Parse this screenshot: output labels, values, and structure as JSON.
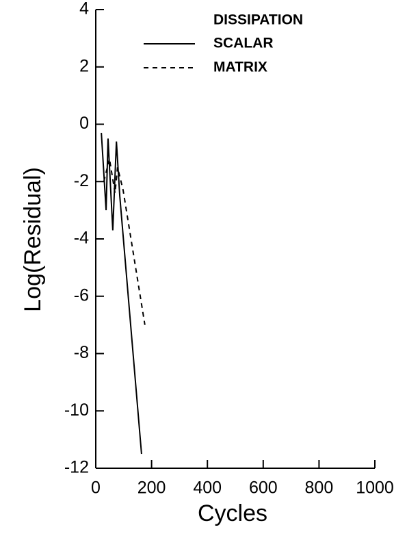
{
  "chart_data": {
    "type": "line",
    "x_label": "Cycles",
    "y_label": "Log(Residual)",
    "legend_title": "DISSIPATION",
    "series": [
      {
        "name": "SCALAR",
        "color": "#000000",
        "dash": "solid",
        "x": [
          20,
          37,
          44,
          61,
          74,
          86,
          164
        ],
        "values": [
          -0.3,
          -3,
          -0.5,
          -3.7,
          -0.6,
          -2.5,
          -11.5
        ]
      },
      {
        "name": "MATRIX",
        "color": "#000000",
        "dash": "dashed",
        "x": [
          29,
          49,
          69,
          78,
          98,
          176
        ],
        "values": [
          -2,
          -1.2,
          -2.4,
          -1.5,
          -2.3,
          -7
        ]
      }
    ],
    "xlim": [
      0,
      1000
    ],
    "xticks": [
      0,
      200,
      400,
      600,
      800,
      1000
    ],
    "ylim": [
      -12,
      4
    ],
    "yticks": [
      -12,
      -10,
      -8,
      -6,
      -4,
      -2,
      0,
      2,
      4
    ],
    "grid": false
  }
}
